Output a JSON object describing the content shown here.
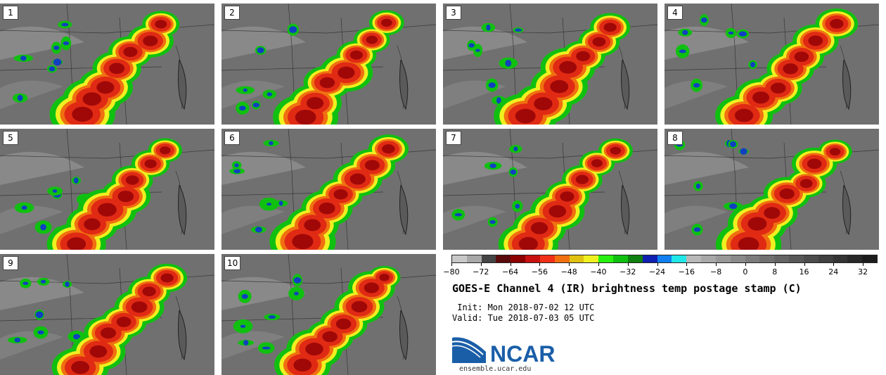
{
  "panels": [
    "1",
    "2",
    "3",
    "4",
    "5",
    "6",
    "7",
    "8",
    "9",
    "10"
  ],
  "colorbar": {
    "colors": [
      "#c8c8c8",
      "#a8a8a8",
      "#444444",
      "#5a0a0a",
      "#8c0000",
      "#c81010",
      "#f03018",
      "#f07010",
      "#e0c010",
      "#f0f020",
      "#28f010",
      "#10c010",
      "#108010",
      "#1020b0",
      "#1080f0",
      "#20e8e8",
      "#b8b8b8",
      "#a8a8a8",
      "#989898",
      "#8a8a8a",
      "#7c7c7c",
      "#707070",
      "#646464",
      "#585858",
      "#4c4c4c",
      "#404040",
      "#343434",
      "#282828",
      "#1c1c1c"
    ],
    "tick_labels": [
      "−80",
      "−72",
      "−64",
      "−56",
      "−48",
      "−40",
      "−32",
      "−24",
      "−16",
      "−8",
      "0",
      "8",
      "16",
      "24",
      "32"
    ]
  },
  "title": "GOES-E Channel 4 (IR) brightness temp postage stamp (C)",
  "init_text": " Init: Mon 2018-07-02 12 UTC",
  "valid_text": "Valid: Tue 2018-07-03 05 UTC",
  "logo": {
    "text": "NCAR",
    "color": "#1a5ea8"
  },
  "site": "ensemble.ucar.edu"
}
